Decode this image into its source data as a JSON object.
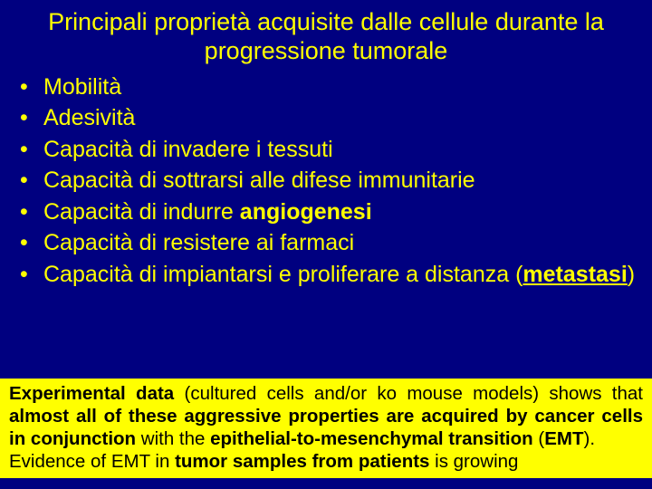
{
  "slide": {
    "title": "Principali proprietà acquisite dalle cellule durante la progressione tumorale",
    "bullets": [
      {
        "text": "Mobilità"
      },
      {
        "text": "Adesività"
      },
      {
        "text": "Capacità di invadere i tessuti"
      },
      {
        "text": "Capacità di sottrarsi alle difese immunitarie"
      },
      {
        "pre": "Capacità di indurre ",
        "bold": "angiogenesi"
      },
      {
        "text": "Capacità di resistere ai farmaci"
      },
      {
        "pre": "Capacità di impiantarsi e proliferare a distanza (",
        "boldUnderline": "metastasi",
        "post": ")"
      }
    ],
    "note": {
      "p1a": "Experimental data",
      "p1b": " (cultured cells and/or ko mouse models) shows that ",
      "p1c": "almost all of these aggressive properties are acquired by cancer cells in conjunction",
      "p1d": " with the ",
      "p1e": "epithelial-to-mesenchymal transition",
      "p1f": " (",
      "p1g": "EMT",
      "p1h": ").",
      "p2a": "Evidence of EMT in ",
      "p2b": "tumor samples from patients",
      "p2c": " is growing"
    },
    "colors": {
      "background": "#000080",
      "primaryText": "#ffff00",
      "noteBackground": "#ffff00",
      "noteText": "#000000"
    },
    "fonts": {
      "title_pt": 27,
      "bullet_pt": 25,
      "note_pt": 20.5,
      "family": "Arial"
    }
  }
}
